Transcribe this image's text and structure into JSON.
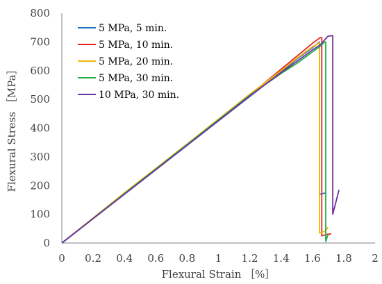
{
  "chart_data": {
    "type": "line",
    "xlabel": "Flexural Strain ［%］",
    "ylabel": "Flexural Stress ［MPa］",
    "xlim": [
      0,
      2
    ],
    "ylim": [
      0,
      800
    ],
    "xticks": [
      "0",
      "0.2",
      "0.4",
      "0.6",
      "0.8",
      "1",
      "1.2",
      "1.4",
      "1.6",
      "1.8",
      "2"
    ],
    "yticks": [
      "0",
      "100",
      "200",
      "300",
      "400",
      "500",
      "600",
      "700",
      "800"
    ],
    "grid": false,
    "legend_position": "top-left",
    "series": [
      {
        "name": "5 MPa, 5 min.",
        "color": "#1f6fbf",
        "points": [
          [
            0,
            0
          ],
          [
            0.4,
            170
          ],
          [
            0.8,
            340
          ],
          [
            1.2,
            510
          ],
          [
            1.4,
            595
          ],
          [
            1.5,
            640
          ],
          [
            1.6,
            680
          ],
          [
            1.645,
            700
          ],
          [
            1.645,
            170
          ],
          [
            1.69,
            175
          ]
        ]
      },
      {
        "name": "5 MPa, 10 min.",
        "color": "#e8231f",
        "points": [
          [
            0,
            0
          ],
          [
            0.4,
            172
          ],
          [
            0.8,
            342
          ],
          [
            1.2,
            515
          ],
          [
            1.4,
            605
          ],
          [
            1.5,
            650
          ],
          [
            1.6,
            695
          ],
          [
            1.65,
            715
          ],
          [
            1.66,
            715
          ],
          [
            1.66,
            25
          ],
          [
            1.69,
            30
          ],
          [
            1.72,
            32
          ]
        ]
      },
      {
        "name": "5 MPa, 20 min.",
        "color": "#f0b800",
        "points": [
          [
            0,
            0
          ],
          [
            0.4,
            175
          ],
          [
            0.8,
            345
          ],
          [
            1.2,
            518
          ],
          [
            1.4,
            600
          ],
          [
            1.5,
            643
          ],
          [
            1.6,
            683
          ],
          [
            1.64,
            695
          ],
          [
            1.645,
            697
          ],
          [
            1.645,
            35
          ],
          [
            1.68,
            40
          ],
          [
            1.7,
            55
          ]
        ]
      },
      {
        "name": "5 MPa, 30 min.",
        "color": "#1fb04a",
        "points": [
          [
            0,
            0
          ],
          [
            0.4,
            172
          ],
          [
            0.8,
            343
          ],
          [
            1.2,
            514
          ],
          [
            1.4,
            590
          ],
          [
            1.5,
            625
          ],
          [
            1.6,
            665
          ],
          [
            1.65,
            685
          ],
          [
            1.68,
            700
          ],
          [
            1.685,
            700
          ],
          [
            1.685,
            5
          ],
          [
            1.7,
            30
          ]
        ]
      },
      {
        "name": "10 MPa, 30 min.",
        "color": "#7030a0",
        "points": [
          [
            0,
            0
          ],
          [
            0.4,
            170
          ],
          [
            0.8,
            340
          ],
          [
            1.2,
            512
          ],
          [
            1.4,
            593
          ],
          [
            1.5,
            632
          ],
          [
            1.6,
            672
          ],
          [
            1.65,
            690
          ],
          [
            1.7,
            720
          ],
          [
            1.73,
            722
          ],
          [
            1.73,
            100
          ],
          [
            1.77,
            185
          ]
        ]
      }
    ]
  }
}
